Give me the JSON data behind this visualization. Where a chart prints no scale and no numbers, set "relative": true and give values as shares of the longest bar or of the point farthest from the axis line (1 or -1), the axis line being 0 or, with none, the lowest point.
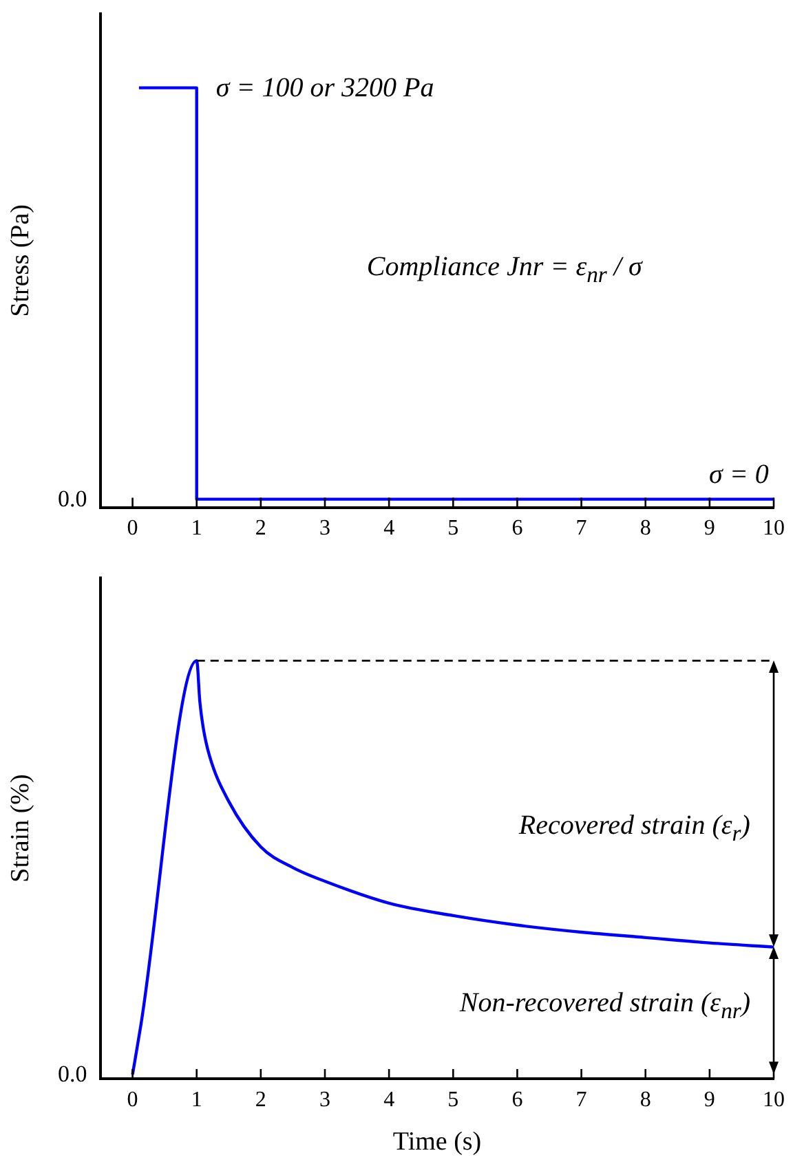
{
  "chart_data": [
    {
      "type": "line",
      "relative": true,
      "ylabel": "Stress (Pa)",
      "x": [
        0.1,
        1,
        1,
        10
      ],
      "xlim": [
        -0.5,
        10
      ],
      "xticks": [
        0,
        1,
        2,
        3,
        4,
        5,
        6,
        7,
        8,
        9,
        10
      ],
      "marker": "none",
      "grid": false,
      "legend": false,
      "series": [
        {
          "color": "#0000ff",
          "values": [
            1,
            1,
            0,
            0
          ]
        }
      ],
      "annotations": [
        {
          "text": "σ = 100 or 3200 Pa",
          "x": 1,
          "y": 1
        },
        "Compliance Jnr = ε$_{nr}$ / σ",
        {
          "text": "σ = 0",
          "x": 10,
          "y": 0
        },
        "0.0"
      ]
    },
    {
      "type": "line",
      "relative": true,
      "ylabel": "Strain (%)",
      "xlabel": "Time (s)",
      "x": [
        0,
        0.13,
        1,
        1.05,
        1.1,
        1.2,
        1.5,
        2,
        2.5,
        3,
        4,
        5,
        6,
        7,
        8,
        9,
        10
      ],
      "xlim": [
        -0.5,
        10
      ],
      "xticks": [
        0,
        1,
        2,
        3,
        4,
        5,
        6,
        7,
        8,
        9,
        10
      ],
      "marker": "none",
      "grid": false,
      "legend": false,
      "series": [
        {
          "color": "#0000ff",
          "values": [
            0,
            0.12,
            1,
            0.9,
            0.84,
            0.77,
            0.66,
            0.55,
            0.5,
            0.467,
            0.414,
            0.384,
            0.361,
            0.344,
            0.331,
            0.318,
            0.308
          ]
        }
      ],
      "ref_lines": [
        {
          "axis": "y",
          "value": 1,
          "color": "#000000",
          "line_style": "dashed"
        }
      ],
      "annotations": [
        "Recovered strain (ε$_{r}$)",
        "Non-recovered strain (ε$_{nr}$)",
        "0.0"
      ]
    }
  ]
}
